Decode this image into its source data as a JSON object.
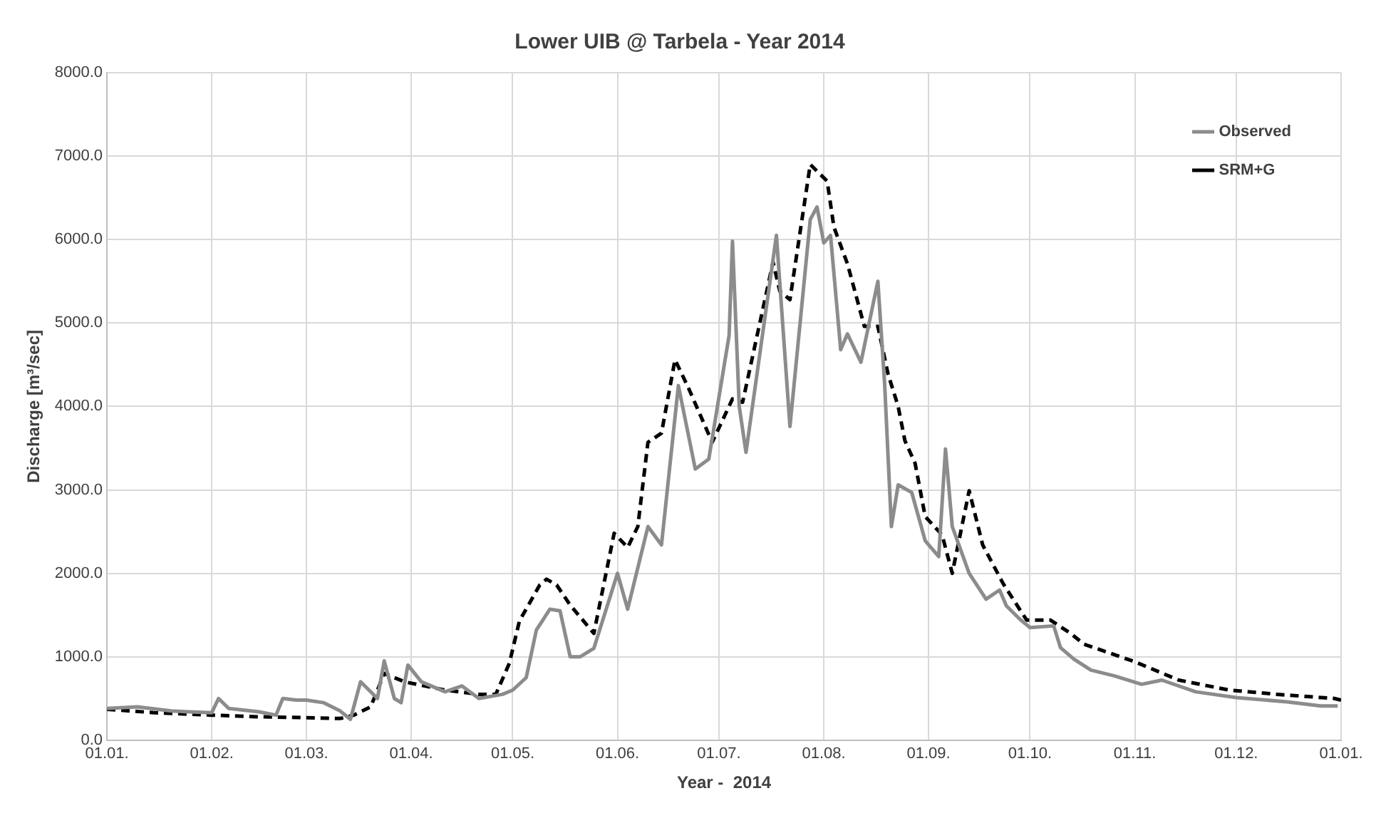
{
  "chart_data": {
    "type": "line",
    "title": "Lower UIB @ Tarbela - Year 2014",
    "xlabel": "Year -  2014",
    "ylabel": "Discharge [m³/sec]",
    "xlim": [
      "2014-01-01",
      "2015-01-01"
    ],
    "xticks": [
      {
        "value": "2014-01-01",
        "label": "01.01."
      },
      {
        "value": "2014-02-01",
        "label": "01.02."
      },
      {
        "value": "2014-03-01",
        "label": "01.03."
      },
      {
        "value": "2014-04-01",
        "label": "01.04."
      },
      {
        "value": "2014-05-01",
        "label": "01.05."
      },
      {
        "value": "2014-06-01",
        "label": "01.06."
      },
      {
        "value": "2014-07-01",
        "label": "01.07."
      },
      {
        "value": "2014-08-01",
        "label": "01.08."
      },
      {
        "value": "2014-09-01",
        "label": "01.09."
      },
      {
        "value": "2014-10-01",
        "label": "01.10."
      },
      {
        "value": "2014-11-01",
        "label": "01.11."
      },
      {
        "value": "2014-12-01",
        "label": "01.12."
      },
      {
        "value": "2015-01-01",
        "label": "01.01."
      }
    ],
    "ylim": [
      0,
      8000
    ],
    "yticks": [
      {
        "value": 0,
        "label": "0.0"
      },
      {
        "value": 1000,
        "label": "1000.0"
      },
      {
        "value": 2000,
        "label": "2000.0"
      },
      {
        "value": 3000,
        "label": "3000.0"
      },
      {
        "value": 4000,
        "label": "4000.0"
      },
      {
        "value": 5000,
        "label": "5000.0"
      },
      {
        "value": 6000,
        "label": "6000.0"
      },
      {
        "value": 7000,
        "label": "7000.0"
      },
      {
        "value": 8000,
        "label": "8000.0"
      }
    ],
    "grid": true,
    "legend": "top right",
    "marker": "none",
    "series": [
      {
        "name": "Observed",
        "color": "#8c8c8c",
        "line_style": "solid",
        "x": [
          "2014-01-01",
          "2014-01-10",
          "2014-01-20",
          "2014-02-01",
          "2014-02-03",
          "2014-02-06",
          "2014-02-15",
          "2014-02-20",
          "2014-02-22",
          "2014-02-26",
          "2014-03-01",
          "2014-03-06",
          "2014-03-11",
          "2014-03-14",
          "2014-03-17",
          "2014-03-22",
          "2014-03-24",
          "2014-03-27",
          "2014-03-29",
          "2014-03-31",
          "2014-04-04",
          "2014-04-11",
          "2014-04-16",
          "2014-04-21",
          "2014-04-28",
          "2014-05-01",
          "2014-05-05",
          "2014-05-08",
          "2014-05-12",
          "2014-05-15",
          "2014-05-18",
          "2014-05-21",
          "2014-05-25",
          "2014-06-01",
          "2014-06-04",
          "2014-06-10",
          "2014-06-14",
          "2014-06-19",
          "2014-06-24",
          "2014-06-28",
          "2014-07-04",
          "2014-07-05",
          "2014-07-07",
          "2014-07-09",
          "2014-07-18",
          "2014-07-22",
          "2014-07-28",
          "2014-07-30",
          "2014-08-01",
          "2014-08-03",
          "2014-08-06",
          "2014-08-08",
          "2014-08-12",
          "2014-08-17",
          "2014-08-19",
          "2014-08-21",
          "2014-08-23",
          "2014-08-27",
          "2014-08-31",
          "2014-09-04",
          "2014-09-06",
          "2014-09-08",
          "2014-09-13",
          "2014-09-18",
          "2014-09-22",
          "2014-09-24",
          "2014-09-28",
          "2014-10-01",
          "2014-10-08",
          "2014-10-10",
          "2014-10-14",
          "2014-10-19",
          "2014-10-26",
          "2014-11-03",
          "2014-11-09",
          "2014-11-19",
          "2014-12-01",
          "2014-12-16",
          "2014-12-26",
          "2014-12-31"
        ],
        "values": [
          380,
          400,
          350,
          330,
          500,
          380,
          340,
          300,
          500,
          480,
          480,
          450,
          350,
          250,
          700,
          500,
          950,
          500,
          450,
          900,
          700,
          580,
          650,
          500,
          550,
          600,
          750,
          1320,
          1570,
          1550,
          1000,
          1000,
          1100,
          2000,
          1570,
          2560,
          2340,
          4250,
          3250,
          3370,
          4850,
          5980,
          4000,
          3450,
          6050,
          3760,
          6240,
          6390,
          5960,
          6050,
          4680,
          4870,
          4530,
          5500,
          4270,
          2560,
          3060,
          2970,
          2390,
          2200,
          3490,
          2560,
          2000,
          1690,
          1800,
          1610,
          1450,
          1350,
          1370,
          1110,
          970,
          840,
          770,
          670,
          720,
          580,
          510,
          460,
          410,
          410
        ]
      },
      {
        "name": "SRM+G",
        "color": "#000000",
        "line_style": "dashed",
        "x": [
          "2014-01-01",
          "2014-01-15",
          "2014-02-01",
          "2014-02-15",
          "2014-03-01",
          "2014-03-11",
          "2014-03-15",
          "2014-03-20",
          "2014-03-24",
          "2014-03-30",
          "2014-04-11",
          "2014-04-21",
          "2014-04-26",
          "2014-04-30",
          "2014-05-03",
          "2014-05-09",
          "2014-05-11",
          "2014-05-14",
          "2014-05-18",
          "2014-05-25",
          "2014-05-31",
          "2014-06-04",
          "2014-06-07",
          "2014-06-10",
          "2014-06-14",
          "2014-06-18",
          "2014-06-22",
          "2014-06-29",
          "2014-07-05",
          "2014-07-08",
          "2014-07-17",
          "2014-07-19",
          "2014-07-22",
          "2014-07-28",
          "2014-08-02",
          "2014-08-04",
          "2014-08-08",
          "2014-08-13",
          "2014-08-17",
          "2014-08-20",
          "2014-08-23",
          "2014-08-25",
          "2014-08-28",
          "2014-08-31",
          "2014-09-05",
          "2014-09-08",
          "2014-09-13",
          "2014-09-17",
          "2014-09-23",
          "2014-09-26",
          "2014-09-30",
          "2014-10-07",
          "2014-10-13",
          "2014-10-17",
          "2014-11-01",
          "2014-11-14",
          "2014-11-29",
          "2014-12-13",
          "2014-12-30",
          "2015-01-01"
        ],
        "values": [
          370,
          330,
          300,
          280,
          270,
          260,
          300,
          400,
          800,
          700,
          600,
          550,
          550,
          920,
          1430,
          1860,
          1930,
          1860,
          1620,
          1280,
          2480,
          2310,
          2560,
          3570,
          3680,
          4560,
          4220,
          3570,
          4090,
          4050,
          5730,
          5380,
          5280,
          6900,
          6700,
          6150,
          5710,
          4960,
          4960,
          4390,
          4000,
          3590,
          3320,
          2680,
          2460,
          2000,
          2990,
          2340,
          1880,
          1690,
          1440,
          1440,
          1280,
          1150,
          940,
          720,
          600,
          550,
          500,
          480
        ]
      }
    ]
  }
}
